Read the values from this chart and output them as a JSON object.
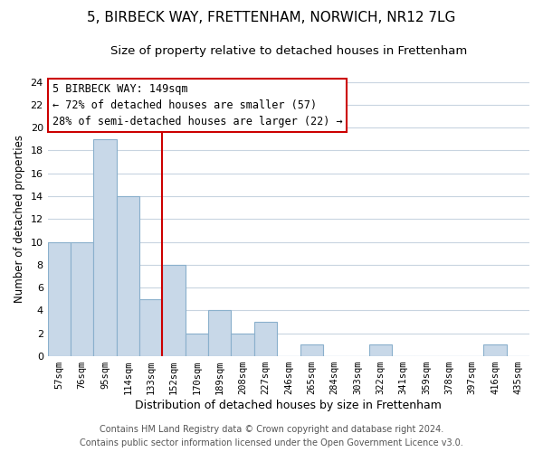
{
  "title": "5, BIRBECK WAY, FRETTENHAM, NORWICH, NR12 7LG",
  "subtitle": "Size of property relative to detached houses in Frettenham",
  "xlabel": "Distribution of detached houses by size in Frettenham",
  "ylabel": "Number of detached properties",
  "bin_labels": [
    "57sqm",
    "76sqm",
    "95sqm",
    "114sqm",
    "133sqm",
    "152sqm",
    "170sqm",
    "189sqm",
    "208sqm",
    "227sqm",
    "246sqm",
    "265sqm",
    "284sqm",
    "303sqm",
    "322sqm",
    "341sqm",
    "359sqm",
    "378sqm",
    "397sqm",
    "416sqm",
    "435sqm"
  ],
  "bar_heights": [
    10,
    10,
    19,
    14,
    5,
    8,
    2,
    4,
    2,
    3,
    0,
    1,
    0,
    0,
    1,
    0,
    0,
    0,
    0,
    1,
    0
  ],
  "bar_color": "#c8d8e8",
  "bar_edge_color": "#8ab0cc",
  "vline_color": "#cc0000",
  "annotation_title": "5 BIRBECK WAY: 149sqm",
  "annotation_line1": "← 72% of detached houses are smaller (57)",
  "annotation_line2": "28% of semi-detached houses are larger (22) →",
  "annotation_box_color": "#ffffff",
  "annotation_box_edge": "#cc0000",
  "ylim": [
    0,
    24
  ],
  "yticks": [
    0,
    2,
    4,
    6,
    8,
    10,
    12,
    14,
    16,
    18,
    20,
    22,
    24
  ],
  "footer_line1": "Contains HM Land Registry data © Crown copyright and database right 2024.",
  "footer_line2": "Contains public sector information licensed under the Open Government Licence v3.0.",
  "background_color": "#ffffff",
  "grid_color": "#c8d4e0",
  "title_fontsize": 11,
  "subtitle_fontsize": 9.5,
  "xlabel_fontsize": 9,
  "ylabel_fontsize": 8.5,
  "footer_fontsize": 7
}
